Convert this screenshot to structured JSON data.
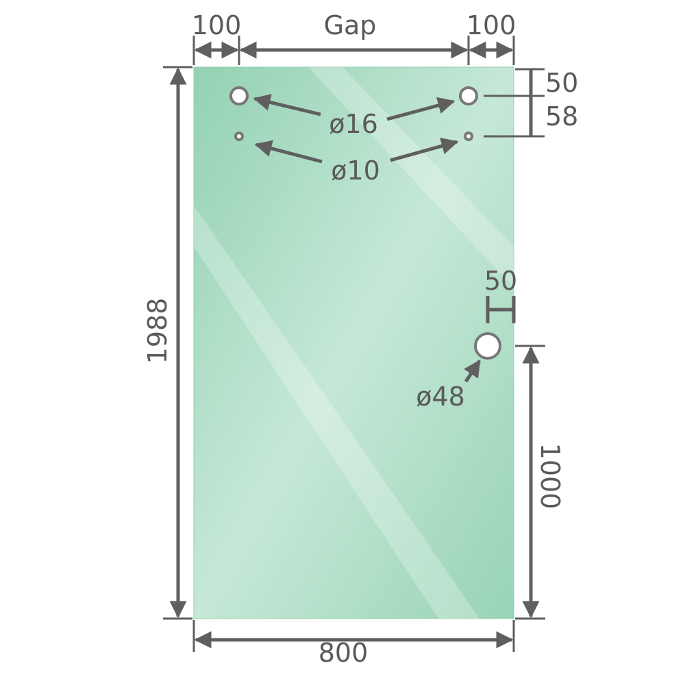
{
  "colors": {
    "glass": "#9dd6b9",
    "glass_highlight": "#c8e9d8",
    "line": "#5f5f5f",
    "text": "#5a5a5a"
  },
  "dimensions": {
    "left_offset": "100",
    "gap": "Gap",
    "right_offset": "100",
    "top_to_hole": "50",
    "hole_spacing": "58",
    "height": "1988",
    "width": "800",
    "handle_edge": "50",
    "handle_height": "1000"
  },
  "holes": {
    "large_top": "ø16",
    "small_top": "ø10",
    "handle": "ø48"
  }
}
